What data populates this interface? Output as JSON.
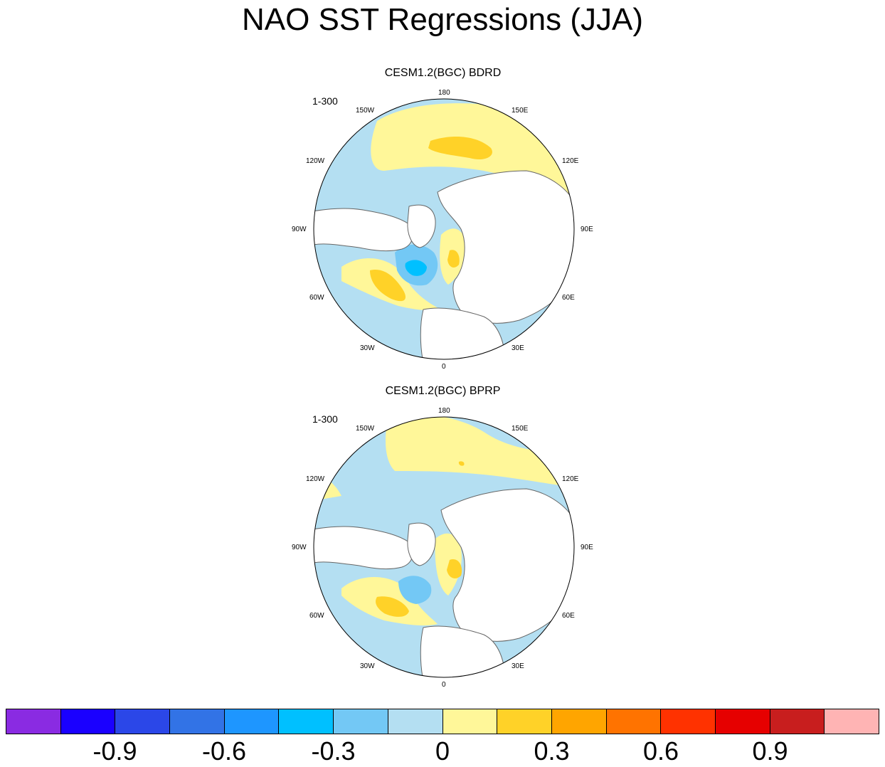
{
  "title": "NAO SST Regressions (JJA)",
  "panels": [
    {
      "title": "CESM1.2(BGC) BDRD",
      "years": "1-300",
      "lon_labels": {
        "180": "180",
        "150E": "150E",
        "120E": "120E",
        "90E": "90E",
        "60E": "60E",
        "30E": "30E",
        "0": "0",
        "30W": "30W",
        "60W": "60W",
        "90W": "90W",
        "120W": "120W",
        "150W": "150W"
      }
    },
    {
      "title": "CESM1.2(BGC) BPRP",
      "years": "1-300",
      "lon_labels": {
        "180": "180",
        "150E": "150E",
        "120E": "120E",
        "90E": "90E",
        "60E": "60E",
        "30E": "30E",
        "0": "0",
        "30W": "30W",
        "60W": "60W",
        "90W": "90W",
        "120W": "120W",
        "150W": "150W"
      }
    }
  ],
  "colorbar": {
    "colors": [
      "#8a2be2",
      "#1a00ff",
      "#2b47e8",
      "#3273e6",
      "#1e96ff",
      "#00c0ff",
      "#73c8f5",
      "#b4dff2",
      "#fff799",
      "#ffd228",
      "#ffa500",
      "#ff7300",
      "#ff3200",
      "#e60000",
      "#c81e1e",
      "#ffb4b4"
    ],
    "tick_labels": [
      "-0.9",
      "-0.6",
      "-0.3",
      "0",
      "0.3",
      "0.6",
      "0.9"
    ]
  },
  "fill_colors": {
    "neg1": "#b4dff2",
    "neg2": "#73c8f5",
    "neg3": "#00c0ff",
    "pos1": "#fff799",
    "pos2": "#ffd228",
    "pos3": "#ffa500",
    "land": "#ffffff"
  }
}
